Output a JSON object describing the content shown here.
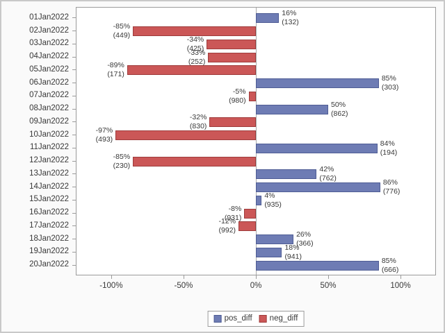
{
  "figure": {
    "background": "#fafafa",
    "border_color": "#c9c9c9",
    "wall_color": "#ffffff",
    "axis_line_color": "#9b9b9b",
    "zero_line_color": "#ababab",
    "text_color": "#383838"
  },
  "chart_data": {
    "type": "bar",
    "orientation": "horizontal",
    "title": "",
    "xlabel": "",
    "ylabel": "",
    "grid": false,
    "xlim": [
      -124,
      124
    ],
    "x_axis_ticks": [
      {
        "value": -100,
        "label": "-100%"
      },
      {
        "value": -50,
        "label": "-50%"
      },
      {
        "value": 0,
        "label": "0%"
      },
      {
        "value": 50,
        "label": "50%"
      },
      {
        "value": 100,
        "label": "100%"
      }
    ],
    "categories": [
      "01Jan2022",
      "02Jan2022",
      "03Jan2022",
      "04Jan2022",
      "05Jan2022",
      "06Jan2022",
      "07Jan2022",
      "08Jan2022",
      "09Jan2022",
      "10Jan2022",
      "11Jan2022",
      "12Jan2022",
      "13Jan2022",
      "14Jan2022",
      "15Jan2022",
      "16Jan2022",
      "17Jan2022",
      "18Jan2022",
      "19Jan2022",
      "20Jan2022"
    ],
    "series": [
      {
        "name": "pos_diff",
        "fill": "#6e7cb4",
        "border": "#4e5c94"
      },
      {
        "name": "neg_diff",
        "fill": "#cb5757",
        "border": "#9e3b3b"
      }
    ],
    "points": [
      {
        "category": "01Jan2022",
        "series": "pos_diff",
        "pct": 16,
        "count": 132,
        "pct_label": "16%",
        "count_label": "(132)"
      },
      {
        "category": "02Jan2022",
        "series": "neg_diff",
        "pct": -85,
        "count": 449,
        "pct_label": "-85%",
        "count_label": "(449)"
      },
      {
        "category": "03Jan2022",
        "series": "neg_diff",
        "pct": -34,
        "count": 425,
        "pct_label": "-34%",
        "count_label": "(425)"
      },
      {
        "category": "04Jan2022",
        "series": "neg_diff",
        "pct": -33,
        "count": 252,
        "pct_label": "-33%",
        "count_label": "(252)"
      },
      {
        "category": "05Jan2022",
        "series": "neg_diff",
        "pct": -89,
        "count": 171,
        "pct_label": "-89%",
        "count_label": "(171)"
      },
      {
        "category": "06Jan2022",
        "series": "pos_diff",
        "pct": 85,
        "count": 303,
        "pct_label": "85%",
        "count_label": "(303)"
      },
      {
        "category": "07Jan2022",
        "series": "neg_diff",
        "pct": -5,
        "count": 980,
        "pct_label": "-5%",
        "count_label": "(980)"
      },
      {
        "category": "08Jan2022",
        "series": "pos_diff",
        "pct": 50,
        "count": 862,
        "pct_label": "50%",
        "count_label": "(862)"
      },
      {
        "category": "09Jan2022",
        "series": "neg_diff",
        "pct": -32,
        "count": 830,
        "pct_label": "-32%",
        "count_label": "(830)"
      },
      {
        "category": "10Jan2022",
        "series": "neg_diff",
        "pct": -97,
        "count": 493,
        "pct_label": "-97%",
        "count_label": "(493)"
      },
      {
        "category": "11Jan2022",
        "series": "pos_diff",
        "pct": 84,
        "count": 194,
        "pct_label": "84%",
        "count_label": "(194)"
      },
      {
        "category": "12Jan2022",
        "series": "neg_diff",
        "pct": -85,
        "count": 230,
        "pct_label": "-85%",
        "count_label": "(230)"
      },
      {
        "category": "13Jan2022",
        "series": "pos_diff",
        "pct": 42,
        "count": 762,
        "pct_label": "42%",
        "count_label": "(762)"
      },
      {
        "category": "14Jan2022",
        "series": "pos_diff",
        "pct": 86,
        "count": 776,
        "pct_label": "86%",
        "count_label": "(776)"
      },
      {
        "category": "15Jan2022",
        "series": "pos_diff",
        "pct": 4,
        "count": 935,
        "pct_label": "4%",
        "count_label": "(935)"
      },
      {
        "category": "16Jan2022",
        "series": "neg_diff",
        "pct": -8,
        "count": 931,
        "pct_label": "-8%",
        "count_label": "(931)"
      },
      {
        "category": "17Jan2022",
        "series": "neg_diff",
        "pct": -12,
        "count": 992,
        "pct_label": "-12%",
        "count_label": "(992)"
      },
      {
        "category": "18Jan2022",
        "series": "pos_diff",
        "pct": 26,
        "count": 366,
        "pct_label": "26%",
        "count_label": "(366)"
      },
      {
        "category": "19Jan2022",
        "series": "pos_diff",
        "pct": 18,
        "count": 941,
        "pct_label": "18%",
        "count_label": "(941)"
      },
      {
        "category": "20Jan2022",
        "series": "pos_diff",
        "pct": 85,
        "count": 666,
        "pct_label": "85%",
        "count_label": "(666)"
      }
    ],
    "legend": {
      "position": "bottom-center",
      "entries": [
        "pos_diff",
        "neg_diff"
      ]
    }
  }
}
